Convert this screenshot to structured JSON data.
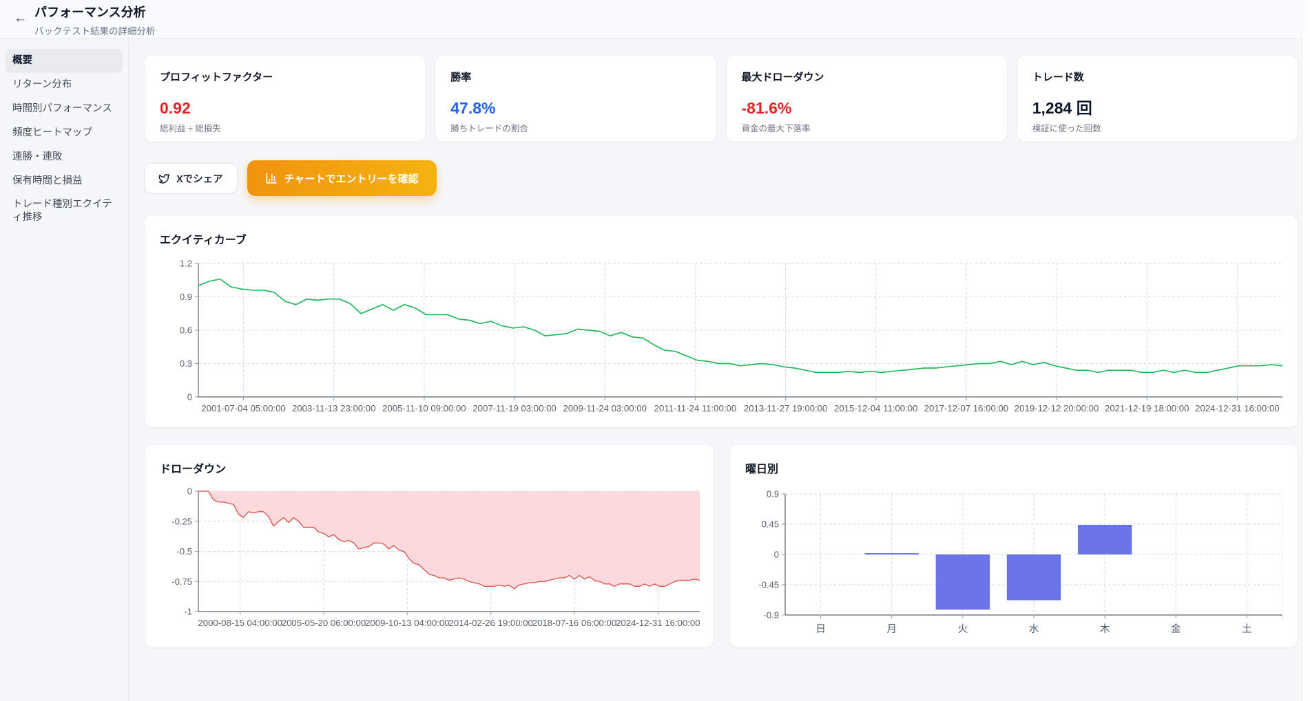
{
  "header": {
    "back_icon": "←",
    "title": "パフォーマンス分析",
    "subtitle": "バックテスト結果の詳細分析"
  },
  "sidebar": {
    "items": [
      {
        "label": "概要",
        "active": true
      },
      {
        "label": "リターン分布",
        "active": false
      },
      {
        "label": "時間別パフォーマンス",
        "active": false
      },
      {
        "label": "頻度ヒートマップ",
        "active": false
      },
      {
        "label": "連勝・連敗",
        "active": false
      },
      {
        "label": "保有時間と損益",
        "active": false
      },
      {
        "label": "トレード種別エクイティ推移",
        "active": false
      }
    ]
  },
  "stats": {
    "cards": [
      {
        "title": "プロフィットファクター",
        "value": "0.92",
        "desc": "総利益 ÷ 総損失",
        "color": "#dc2626"
      },
      {
        "title": "勝率",
        "value": "47.8%",
        "desc": "勝ちトレードの割合",
        "color": "#2563eb"
      },
      {
        "title": "最大ドローダウン",
        "value": "-81.6%",
        "desc": "資金の最大下落率",
        "color": "#dc2626"
      },
      {
        "title": "トレード数",
        "value": "1,284 回",
        "desc": "検証に使った回数",
        "color": "#0f172a"
      }
    ]
  },
  "actions": {
    "share_label": "Xでシェア",
    "confirm_label": "チャートでエントリーを確認"
  },
  "chart_data": [
    {
      "type": "line",
      "title": "エクイティカーブ",
      "color": "#22b95a",
      "ylim": [
        0,
        1.2
      ],
      "yticks": [
        {
          "v": 1.2,
          "l": "1.2"
        },
        {
          "v": 0.9,
          "l": "0.9"
        },
        {
          "v": 0.6,
          "l": "0.6"
        },
        {
          "v": 0.3,
          "l": "0.3"
        },
        {
          "v": 0,
          "l": "0"
        }
      ],
      "xticklabels": [
        "2001-07-04 05:00:00",
        "2003-11-13 23:00:00",
        "2005-11-10 09:00:00",
        "2007-11-19 03:00:00",
        "2009-11-24 03:00:00",
        "2011-11-24 11:00:00",
        "2013-11-27 19:00:00",
        "2015-12-04 11:00:00",
        "2017-12-07 16:00:00",
        "2019-12-12 20:00:00",
        "2021-12-19 18:00:00",
        "2024-12-31 16:00:00"
      ],
      "values": [
        1.0,
        1.04,
        1.06,
        0.99,
        0.97,
        0.96,
        0.96,
        0.94,
        0.86,
        0.83,
        0.88,
        0.87,
        0.88,
        0.88,
        0.84,
        0.75,
        0.79,
        0.83,
        0.78,
        0.83,
        0.8,
        0.74,
        0.74,
        0.74,
        0.7,
        0.69,
        0.66,
        0.68,
        0.64,
        0.62,
        0.63,
        0.6,
        0.55,
        0.56,
        0.57,
        0.61,
        0.6,
        0.59,
        0.55,
        0.58,
        0.54,
        0.53,
        0.47,
        0.42,
        0.41,
        0.37,
        0.33,
        0.32,
        0.3,
        0.3,
        0.28,
        0.29,
        0.3,
        0.29,
        0.27,
        0.26,
        0.24,
        0.22,
        0.22,
        0.22,
        0.23,
        0.22,
        0.23,
        0.22,
        0.23,
        0.24,
        0.25,
        0.26,
        0.26,
        0.27,
        0.28,
        0.29,
        0.3,
        0.3,
        0.32,
        0.29,
        0.32,
        0.29,
        0.31,
        0.28,
        0.26,
        0.24,
        0.24,
        0.22,
        0.24,
        0.24,
        0.24,
        0.22,
        0.22,
        0.24,
        0.22,
        0.24,
        0.22,
        0.22,
        0.24,
        0.26,
        0.28,
        0.28,
        0.28,
        0.29,
        0.28
      ]
    },
    {
      "type": "area",
      "title": "ドローダウン",
      "color": "#e14c4c",
      "fill": "#fadada",
      "ylim": [
        -1,
        0
      ],
      "yticks": [
        {
          "v": 0,
          "l": "0"
        },
        {
          "v": -0.25,
          "l": "-0.25"
        },
        {
          "v": -0.5,
          "l": "-0.5"
        },
        {
          "v": -0.75,
          "l": "-0.75"
        },
        {
          "v": -1,
          "l": "-1"
        }
      ],
      "xticklabels": [
        "2000-08-15 04:00:00",
        "2005-05-20 06:00:00",
        "2009-10-13 04:00:00",
        "2014-02-26 19:00:00",
        "2018-07-16 06:00:00",
        "2024-12-31 16:00:00"
      ],
      "values": [
        0,
        0,
        0,
        -0.07,
        -0.09,
        -0.09,
        -0.1,
        -0.11,
        -0.19,
        -0.22,
        -0.17,
        -0.18,
        -0.17,
        -0.17,
        -0.21,
        -0.29,
        -0.25,
        -0.22,
        -0.26,
        -0.22,
        -0.25,
        -0.3,
        -0.3,
        -0.3,
        -0.34,
        -0.35,
        -0.38,
        -0.36,
        -0.4,
        -0.42,
        -0.41,
        -0.43,
        -0.48,
        -0.47,
        -0.46,
        -0.43,
        -0.43,
        -0.44,
        -0.48,
        -0.45,
        -0.49,
        -0.5,
        -0.56,
        -0.6,
        -0.61,
        -0.65,
        -0.69,
        -0.7,
        -0.72,
        -0.72,
        -0.74,
        -0.73,
        -0.72,
        -0.73,
        -0.75,
        -0.76,
        -0.77,
        -0.79,
        -0.79,
        -0.79,
        -0.78,
        -0.79,
        -0.78,
        -0.81,
        -0.78,
        -0.77,
        -0.76,
        -0.76,
        -0.75,
        -0.75,
        -0.74,
        -0.73,
        -0.72,
        -0.72,
        -0.7,
        -0.73,
        -0.7,
        -0.73,
        -0.71,
        -0.74,
        -0.75,
        -0.77,
        -0.77,
        -0.79,
        -0.77,
        -0.77,
        -0.77,
        -0.79,
        -0.79,
        -0.77,
        -0.79,
        -0.77,
        -0.79,
        -0.79,
        -0.77,
        -0.75,
        -0.74,
        -0.74,
        -0.74,
        -0.73,
        -0.74
      ]
    },
    {
      "type": "bar",
      "title": "曜日別",
      "color": "#6b74e5",
      "ylim": [
        -0.9,
        0.9
      ],
      "yticks": [
        {
          "v": 0.9,
          "l": "0.9"
        },
        {
          "v": 0.45,
          "l": "0.45"
        },
        {
          "v": 0,
          "l": "0"
        },
        {
          "v": -0.45,
          "l": "-0.45"
        },
        {
          "v": -0.9,
          "l": "-0.9"
        }
      ],
      "categories": [
        "日",
        "月",
        "火",
        "水",
        "木",
        "金",
        "土"
      ],
      "values": [
        0,
        0.02,
        -0.82,
        -0.68,
        0.44,
        0,
        0
      ]
    }
  ]
}
